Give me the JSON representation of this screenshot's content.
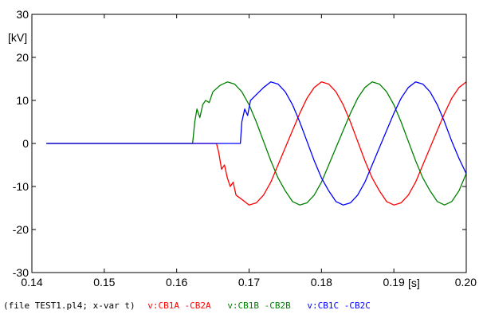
{
  "chart_data": {
    "type": "line",
    "title": "",
    "ylabel": "[kV]",
    "xlabel": "[s]",
    "xlim": [
      0.14,
      0.2
    ],
    "ylim": [
      -30,
      30
    ],
    "x_ticks": [
      0.14,
      0.15,
      0.16,
      0.17,
      0.18,
      0.19,
      0.2
    ],
    "x_tick_labels": [
      "0.14",
      "0.15",
      "0.16",
      "0.17",
      "0.18",
      "0.19",
      "0.20"
    ],
    "y_ticks": [
      30,
      20,
      10,
      0,
      -10,
      -20,
      -30
    ],
    "y_tick_labels": [
      "30",
      "20",
      "10",
      "0",
      "-10",
      "-20",
      "-30"
    ],
    "grid": false,
    "legend_position": "bottom",
    "footer_text": "(file TEST1.pl4; x-var t)",
    "series": [
      {
        "name": "v:CB1A -CB2A",
        "color": "#ff0000",
        "points": [
          [
            0.142,
            0
          ],
          [
            0.1655,
            0
          ],
          [
            0.1658,
            -2
          ],
          [
            0.1662,
            -6
          ],
          [
            0.1666,
            -5
          ],
          [
            0.167,
            -8
          ],
          [
            0.1674,
            -10
          ],
          [
            0.1678,
            -9
          ],
          [
            0.1682,
            -12
          ],
          [
            0.169,
            -13
          ],
          [
            0.17,
            -14.3
          ],
          [
            0.171,
            -13.8
          ],
          [
            0.172,
            -12
          ],
          [
            0.173,
            -9
          ],
          [
            0.174,
            -5
          ],
          [
            0.175,
            -1
          ],
          [
            0.176,
            3
          ],
          [
            0.177,
            7
          ],
          [
            0.178,
            10.5
          ],
          [
            0.179,
            13
          ],
          [
            0.18,
            14.3
          ],
          [
            0.181,
            13.8
          ],
          [
            0.182,
            12
          ],
          [
            0.183,
            9
          ],
          [
            0.184,
            5
          ],
          [
            0.185,
            0.5
          ],
          [
            0.186,
            -4
          ],
          [
            0.187,
            -8
          ],
          [
            0.188,
            -11
          ],
          [
            0.189,
            -13.5
          ],
          [
            0.19,
            -14.3
          ],
          [
            0.191,
            -13.8
          ],
          [
            0.192,
            -12
          ],
          [
            0.193,
            -9
          ],
          [
            0.194,
            -5
          ],
          [
            0.195,
            -1
          ],
          [
            0.196,
            3
          ],
          [
            0.197,
            7
          ],
          [
            0.198,
            10.5
          ],
          [
            0.199,
            13
          ],
          [
            0.2,
            14.3
          ]
        ]
      },
      {
        "name": "v:CB1B -CB2B",
        "color": "#008000",
        "points": [
          [
            0.142,
            0
          ],
          [
            0.1622,
            0
          ],
          [
            0.1625,
            5
          ],
          [
            0.1628,
            8
          ],
          [
            0.1632,
            6
          ],
          [
            0.1636,
            9
          ],
          [
            0.164,
            10
          ],
          [
            0.1645,
            9.5
          ],
          [
            0.165,
            12
          ],
          [
            0.166,
            13.5
          ],
          [
            0.167,
            14.3
          ],
          [
            0.168,
            13.8
          ],
          [
            0.169,
            12
          ],
          [
            0.17,
            9
          ],
          [
            0.171,
            5
          ],
          [
            0.172,
            0.5
          ],
          [
            0.173,
            -4
          ],
          [
            0.174,
            -8
          ],
          [
            0.175,
            -11
          ],
          [
            0.176,
            -13.5
          ],
          [
            0.177,
            -14.3
          ],
          [
            0.178,
            -13.8
          ],
          [
            0.179,
            -12
          ],
          [
            0.18,
            -9
          ],
          [
            0.181,
            -5
          ],
          [
            0.182,
            -1
          ],
          [
            0.183,
            3
          ],
          [
            0.184,
            7
          ],
          [
            0.185,
            10.5
          ],
          [
            0.186,
            13
          ],
          [
            0.187,
            14.3
          ],
          [
            0.188,
            13.8
          ],
          [
            0.189,
            12
          ],
          [
            0.19,
            9
          ],
          [
            0.191,
            5
          ],
          [
            0.192,
            0.5
          ],
          [
            0.193,
            -4
          ],
          [
            0.194,
            -8
          ],
          [
            0.195,
            -11
          ],
          [
            0.196,
            -13.5
          ],
          [
            0.197,
            -14.3
          ],
          [
            0.198,
            -13.5
          ],
          [
            0.199,
            -11
          ],
          [
            0.2,
            -7
          ]
        ]
      },
      {
        "name": "v:CB1C -CB2C",
        "color": "#0000ff",
        "points": [
          [
            0.142,
            0
          ],
          [
            0.1688,
            0
          ],
          [
            0.169,
            5
          ],
          [
            0.1694,
            8
          ],
          [
            0.1698,
            6.5
          ],
          [
            0.1702,
            10
          ],
          [
            0.1708,
            11
          ],
          [
            0.1714,
            12
          ],
          [
            0.172,
            13
          ],
          [
            0.173,
            14.3
          ],
          [
            0.174,
            13.8
          ],
          [
            0.175,
            12
          ],
          [
            0.176,
            9
          ],
          [
            0.177,
            5
          ],
          [
            0.178,
            0.5
          ],
          [
            0.179,
            -4
          ],
          [
            0.18,
            -8
          ],
          [
            0.181,
            -11
          ],
          [
            0.182,
            -13.5
          ],
          [
            0.183,
            -14.3
          ],
          [
            0.184,
            -13.8
          ],
          [
            0.185,
            -12
          ],
          [
            0.186,
            -9
          ],
          [
            0.187,
            -5
          ],
          [
            0.188,
            -1
          ],
          [
            0.189,
            3
          ],
          [
            0.19,
            7
          ],
          [
            0.191,
            10.5
          ],
          [
            0.192,
            13
          ],
          [
            0.193,
            14.3
          ],
          [
            0.194,
            13.8
          ],
          [
            0.195,
            12
          ],
          [
            0.196,
            9
          ],
          [
            0.197,
            5
          ],
          [
            0.198,
            0.5
          ],
          [
            0.199,
            -3.5
          ],
          [
            0.2,
            -7
          ]
        ]
      }
    ]
  }
}
